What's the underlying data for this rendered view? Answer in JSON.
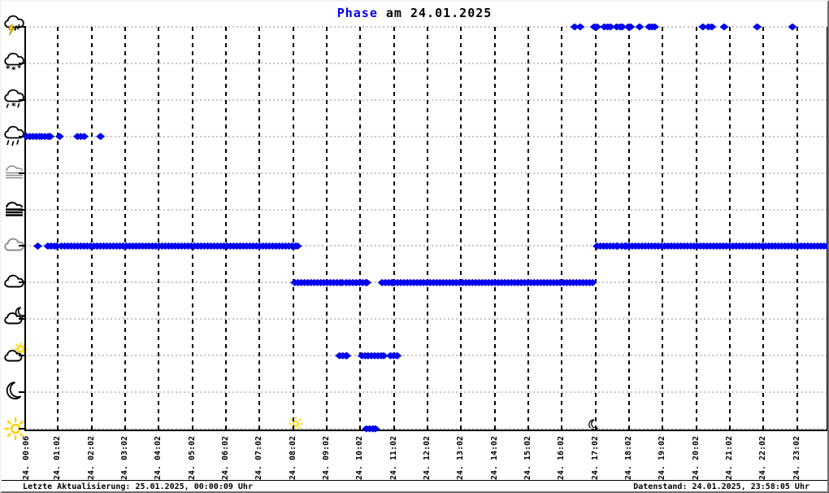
{
  "title": {
    "highlight": "Phase",
    "rest": " am 24.01.2025"
  },
  "status_bar": {
    "left": "Letzte Aktualisierung: 25.01.2025, 00:00:09 Uhr",
    "right": "Datenstand: 24.01.2025, 23:58:05 Uhr"
  },
  "colors": {
    "point": "#0000f0",
    "title_highlight": "#0000ee",
    "grid_horizontal": "#c6c6c6",
    "grid_vertical": "#000000",
    "sun_yellow": "#ffd200",
    "gray_icon": "#8a8a8a"
  },
  "chart_data": {
    "type": "scatter",
    "title": "Phase am 24.01.2025",
    "xlabel": "",
    "ylabel": "",
    "grid": true,
    "x_axis": {
      "labels": [
        "24. 00:06",
        "24. 01:02",
        "24. 02:02",
        "24. 03:02",
        "24. 04:02",
        "24. 05:02",
        "24. 06:02",
        "24. 07:02",
        "24. 08:02",
        "24. 09:02",
        "24. 10:02",
        "24. 11:02",
        "24. 12:02",
        "24. 13:02",
        "24. 14:02",
        "24. 15:02",
        "24. 16:02",
        "24. 17:02",
        "24. 18:02",
        "24. 19:02",
        "24. 20:02",
        "24. 21:02",
        "24. 22:02",
        "24. 23:02"
      ],
      "range_start": "00:06",
      "range_end": "23:56"
    },
    "y_axis": {
      "icons": [
        "thunderstorm-icon",
        "snow-icon",
        "sleet-icon",
        "rain-icon",
        "mist-icon",
        "fog-icon",
        "overcast-cloud-icon",
        "cloud-icon",
        "moon-cloud-icon",
        "sun-cloud-icon",
        "moon-icon",
        "sun-icon"
      ]
    },
    "rows": [
      {
        "row": 0,
        "icon": "thunderstorm-icon",
        "singles": [
          "16:25",
          "16:35",
          "17:00",
          "17:05",
          "17:18",
          "17:24",
          "17:29",
          "17:40",
          "17:46",
          "17:50",
          "18:01",
          "18:05",
          "18:21",
          "18:38",
          "18:43",
          "18:48",
          "20:14",
          "20:24",
          "20:30",
          "20:52",
          "21:51",
          "22:54"
        ],
        "segments": []
      },
      {
        "row": 1,
        "icon": "snow-icon",
        "singles": [],
        "segments": []
      },
      {
        "row": 2,
        "icon": "sleet-icon",
        "singles": [],
        "segments": []
      },
      {
        "row": 3,
        "icon": "rain-icon",
        "singles": [
          "01:05",
          "01:37",
          "01:43",
          "01:49",
          "02:18"
        ],
        "segments": [
          [
            "00:06",
            "00:29"
          ],
          [
            "00:33",
            "00:48"
          ]
        ]
      },
      {
        "row": 4,
        "icon": "mist-icon",
        "singles": [],
        "segments": []
      },
      {
        "row": 5,
        "icon": "fog-icon",
        "singles": [],
        "segments": []
      },
      {
        "row": 6,
        "icon": "overcast-cloud-icon",
        "singles": [
          "00:26"
        ],
        "segments": [
          [
            "00:44",
            "01:00"
          ],
          [
            "01:08",
            "08:10"
          ],
          [
            "17:05",
            "17:42"
          ],
          [
            "17:49",
            "17:57"
          ],
          [
            "18:02",
            "23:56"
          ]
        ]
      },
      {
        "row": 7,
        "icon": "cloud-icon",
        "singles": [],
        "segments": [
          [
            "08:05",
            "09:30"
          ],
          [
            "09:37",
            "10:14"
          ],
          [
            "10:41",
            "11:00"
          ],
          [
            "11:03",
            "16:57"
          ]
        ]
      },
      {
        "row": 8,
        "icon": "moon-cloud-icon",
        "singles": [],
        "segments": []
      },
      {
        "row": 9,
        "icon": "sun-cloud-icon",
        "singles": [],
        "segments": [
          [
            "09:25",
            "09:38"
          ],
          [
            "10:05",
            "10:16"
          ],
          [
            "10:22",
            "10:44"
          ],
          [
            "10:56",
            "11:08"
          ]
        ]
      },
      {
        "row": 10,
        "icon": "moon-icon",
        "singles": [],
        "segments": []
      },
      {
        "row": 11,
        "icon": "sun-icon",
        "singles": [],
        "segments": [
          [
            "10:13",
            "10:29"
          ]
        ]
      }
    ],
    "sunrise_marker": {
      "icon": "sunrise-sun-icon",
      "time": "08:07"
    },
    "sunset_marker": {
      "icon": "sunset-moon-icon",
      "time": "17:00"
    }
  }
}
